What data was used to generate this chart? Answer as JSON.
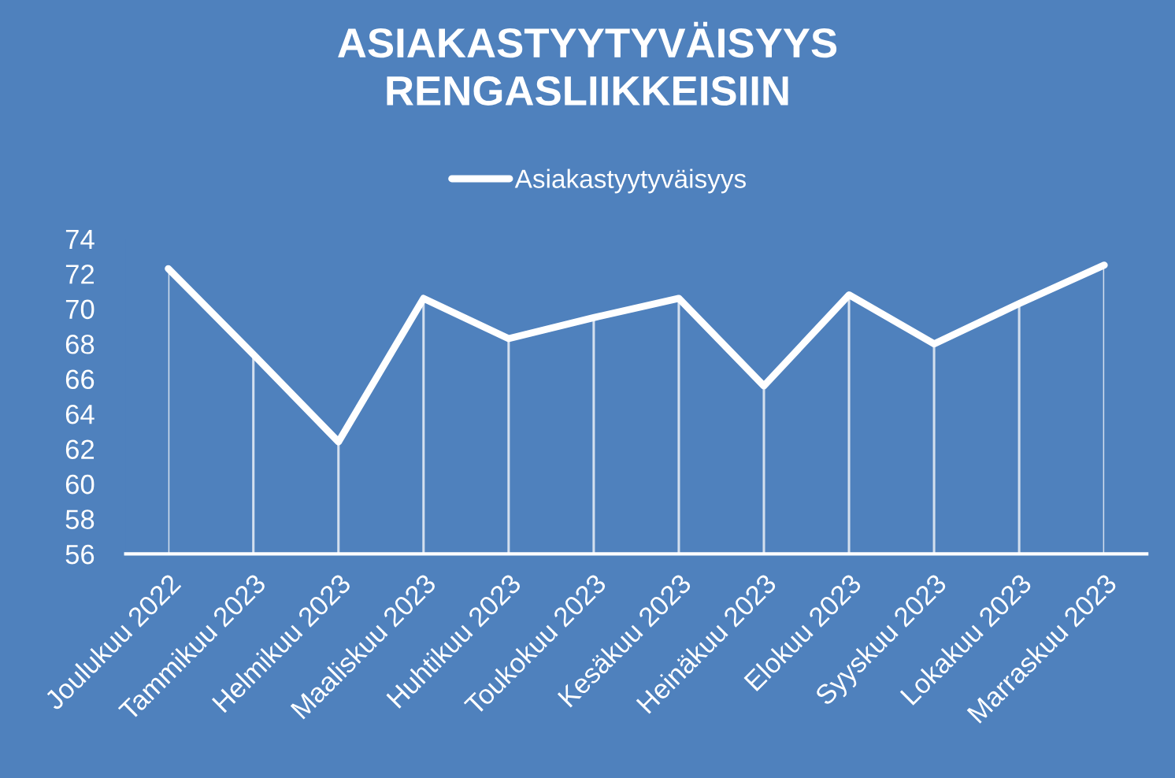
{
  "chart_data": {
    "type": "line",
    "title": "ASIAKASTYYTYVÄISYYS\nRENGASLIIKKEISIIN",
    "categories": [
      "Joulukuu 2022",
      "Tammikuu 2023",
      "Helmikuu 2023",
      "Maaliskuu 2023",
      "Huhtikuu 2023",
      "Toukokuu 2023",
      "Kesäkuu 2023",
      "Heinäkuu 2023",
      "Elokuu 2023",
      "Syyskuu 2023",
      "Lokakuu 2023",
      "Marraskuu 2023"
    ],
    "series": [
      {
        "name": "Asiakastyytyväisyys",
        "color": "#ffffff",
        "values": [
          72.3,
          67.4,
          62.4,
          70.6,
          68.3,
          69.5,
          70.6,
          65.6,
          70.8,
          68.0,
          70.3,
          72.5
        ]
      }
    ],
    "ylim": [
      56,
      74
    ],
    "yticks": [
      56,
      58,
      60,
      62,
      64,
      66,
      68,
      70,
      72,
      74
    ],
    "grid": "x",
    "legend": "top",
    "marker": "none",
    "line_style": "solid"
  }
}
